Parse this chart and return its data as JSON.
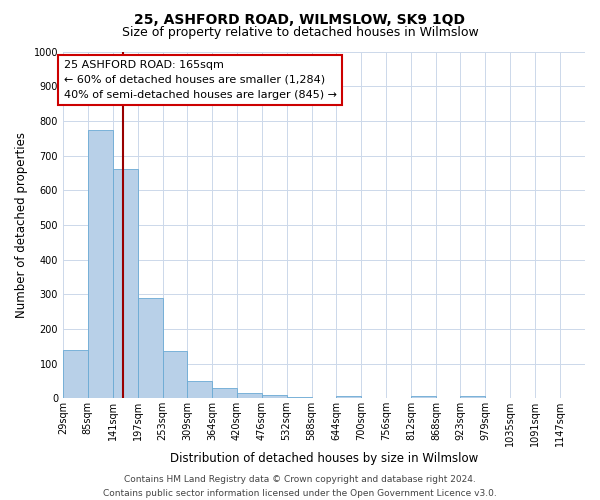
{
  "title": "25, ASHFORD ROAD, WILMSLOW, SK9 1QD",
  "subtitle": "Size of property relative to detached houses in Wilmslow",
  "xlabel": "Distribution of detached houses by size in Wilmslow",
  "ylabel": "Number of detached properties",
  "bar_edges": [
    29,
    85,
    141,
    197,
    253,
    309,
    364,
    420,
    476,
    532,
    588,
    644,
    700,
    756,
    812,
    868,
    923,
    979,
    1035,
    1091,
    1147
  ],
  "bar_heights": [
    140,
    775,
    660,
    290,
    135,
    50,
    30,
    15,
    10,
    5,
    0,
    8,
    0,
    0,
    8,
    0,
    8,
    0,
    0,
    0,
    0
  ],
  "bar_color": "#b8d0e8",
  "bar_edgecolor": "#6aaad4",
  "property_line_x": 165,
  "property_line_color": "#990000",
  "ylim": [
    0,
    1000
  ],
  "yticks": [
    0,
    100,
    200,
    300,
    400,
    500,
    600,
    700,
    800,
    900,
    1000
  ],
  "xlim_left": 29,
  "xlim_right": 1203,
  "tick_positions": [
    29,
    85,
    141,
    197,
    253,
    309,
    364,
    420,
    476,
    532,
    588,
    644,
    700,
    756,
    812,
    868,
    923,
    979,
    1035,
    1091,
    1147
  ],
  "tick_labels": [
    "29sqm",
    "85sqm",
    "141sqm",
    "197sqm",
    "253sqm",
    "309sqm",
    "364sqm",
    "420sqm",
    "476sqm",
    "532sqm",
    "588sqm",
    "644sqm",
    "700sqm",
    "756sqm",
    "812sqm",
    "868sqm",
    "923sqm",
    "979sqm",
    "1035sqm",
    "1091sqm",
    "1147sqm"
  ],
  "annotation_box_text_line1": "25 ASHFORD ROAD: 165sqm",
  "annotation_box_text_line2": "← 60% of detached houses are smaller (1,284)",
  "annotation_box_text_line3": "40% of semi-detached houses are larger (845) →",
  "annotation_box_color": "#ffffff",
  "annotation_box_edgecolor": "#cc0000",
  "footer_line1": "Contains HM Land Registry data © Crown copyright and database right 2024.",
  "footer_line2": "Contains public sector information licensed under the Open Government Licence v3.0.",
  "bg_color": "#ffffff",
  "grid_color": "#ccd8ea",
  "title_fontsize": 10,
  "subtitle_fontsize": 9,
  "axis_label_fontsize": 8.5,
  "tick_fontsize": 7,
  "annotation_fontsize": 8,
  "footer_fontsize": 6.5
}
